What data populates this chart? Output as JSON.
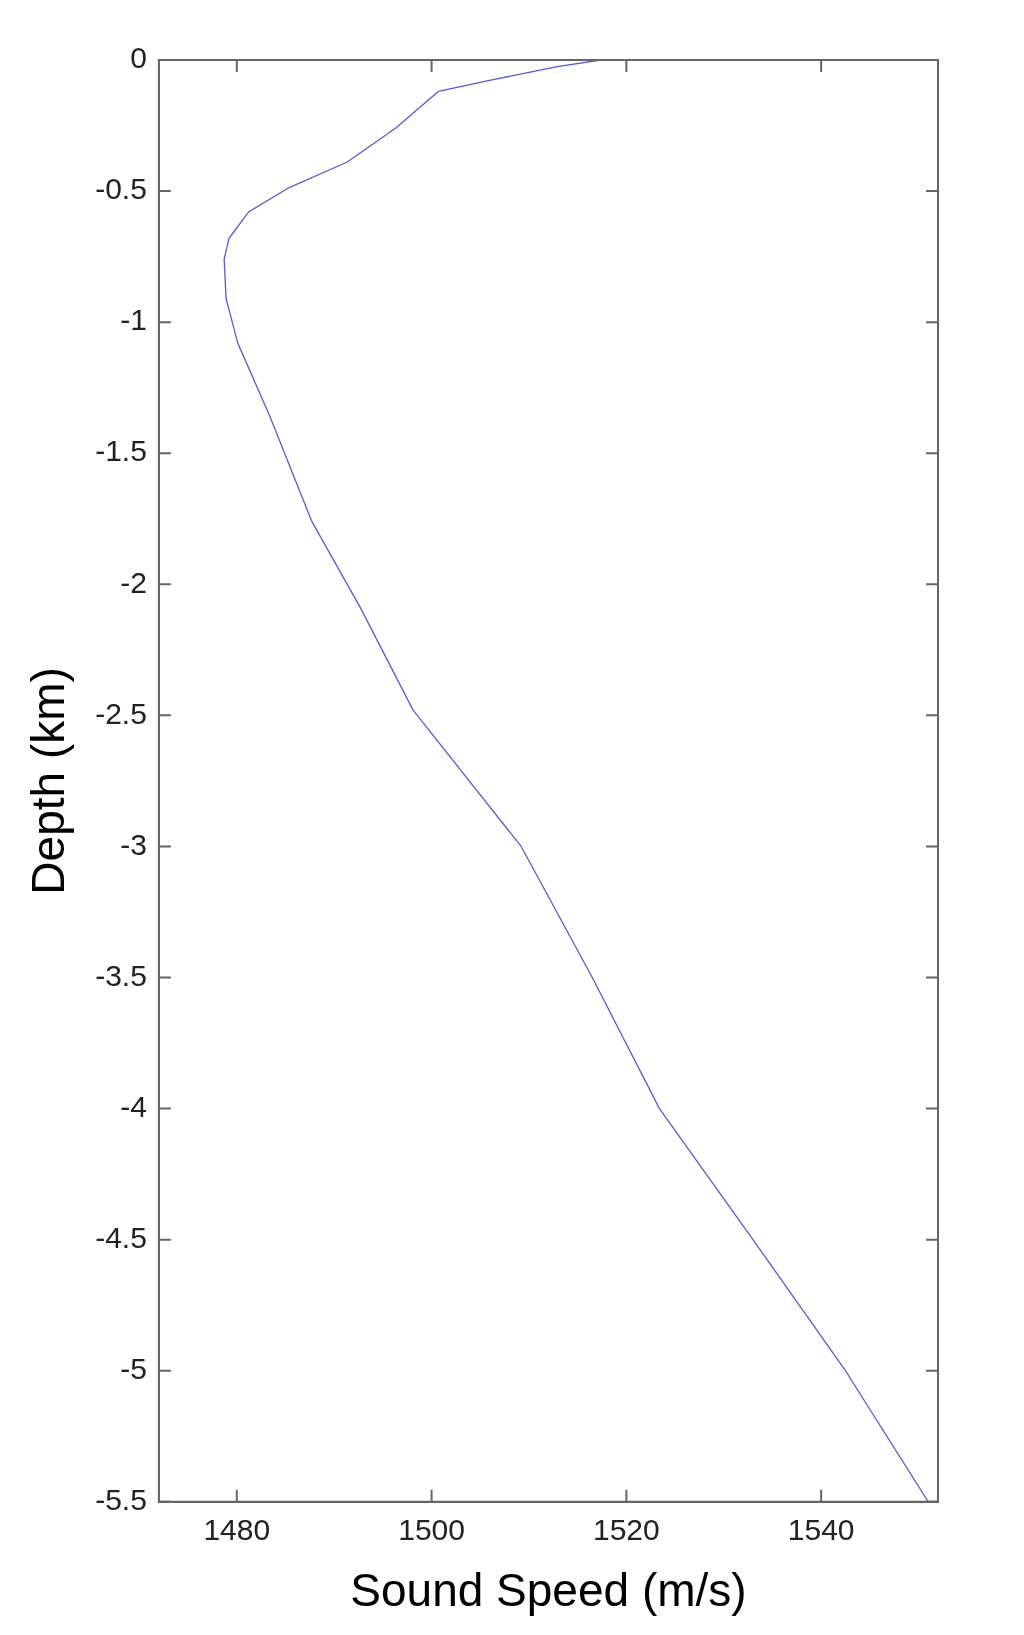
{
  "chart_data": {
    "type": "line",
    "xlabel": "Sound Speed (m/s)",
    "ylabel": "Depth (km)",
    "x": [
      1517.4,
      1512.9,
      1505.7,
      1500.7,
      1498.5,
      1496.3,
      1491.3,
      1485.2,
      1481.2,
      1479.2,
      1478.7,
      1478.9,
      1480.1,
      1483.4,
      1487.7,
      1492.7,
      1498.1,
      1509.2,
      1516.5,
      1523.4,
      1533,
      1542.5,
      1551
    ],
    "series": [
      {
        "color": "#5a5ad0",
        "values": [
          0,
          -0.025,
          -0.08,
          -0.12,
          -0.19,
          -0.26,
          -0.39,
          -0.49,
          -0.58,
          -0.68,
          -0.76,
          -0.91,
          -1.08,
          -1.36,
          -1.76,
          -2.09,
          -2.48,
          -3,
          -3.5,
          -4,
          -4.5,
          -5,
          -5.5
        ]
      }
    ],
    "xlim": [
      1472,
      1552
    ],
    "xticks": [
      1480,
      1500,
      1520,
      1540
    ],
    "ylim": [
      -5.5,
      0
    ],
    "yticks": [
      0,
      -0.5,
      -1,
      -1.5,
      -2,
      -2.5,
      -3,
      -3.5,
      -4,
      -4.5,
      -5,
      -5.5
    ],
    "grid": false,
    "legend": false,
    "marker": "none",
    "line_style": "solid"
  }
}
